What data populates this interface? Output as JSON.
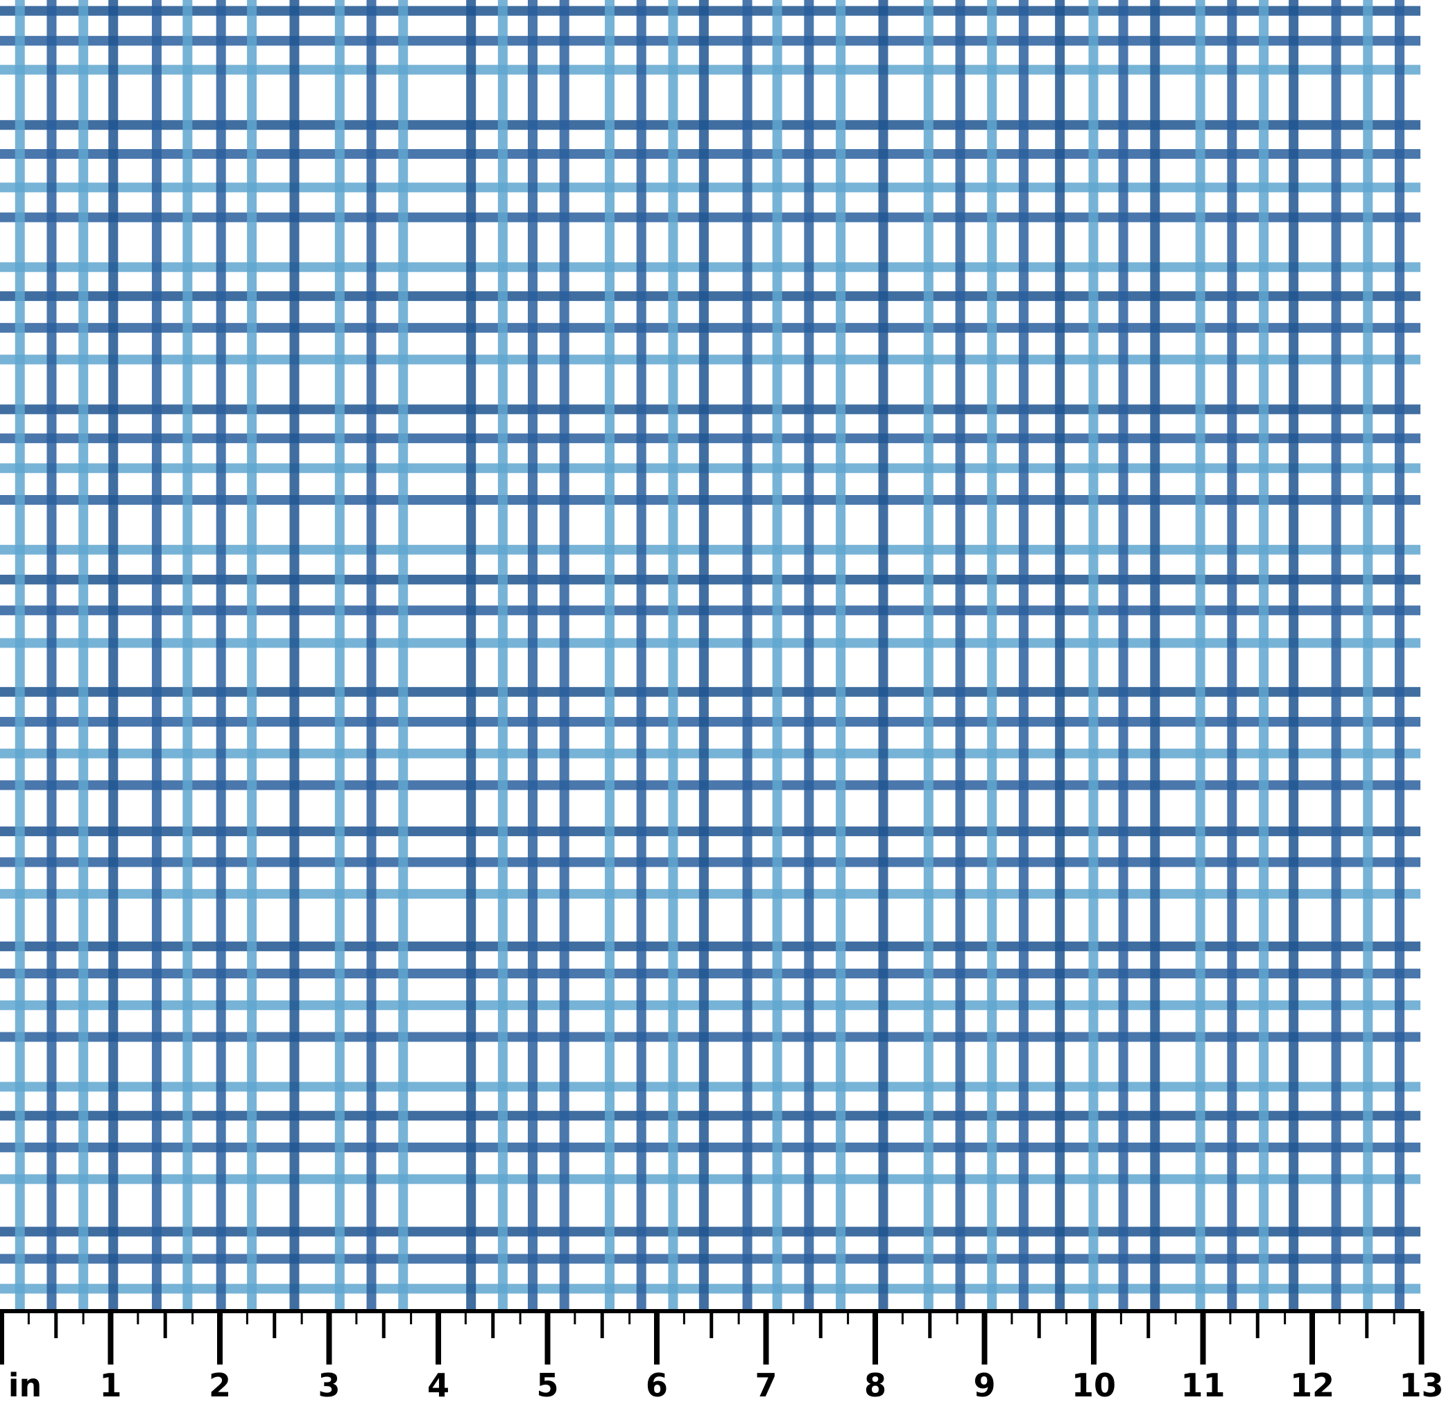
{
  "fabric": {
    "pattern": "watercolor plaid gingham grid",
    "colors": {
      "background": "#ffffff",
      "dark_blue": "#2a5f9e",
      "navy": "#1f5590",
      "light_blue": "#5fa6cf"
    }
  },
  "ruler": {
    "unit_label": "in",
    "labels": [
      "1",
      "2",
      "3",
      "4",
      "5",
      "6",
      "7",
      "8",
      "9",
      "10",
      "11",
      "12",
      "13"
    ],
    "color": "#000000"
  }
}
